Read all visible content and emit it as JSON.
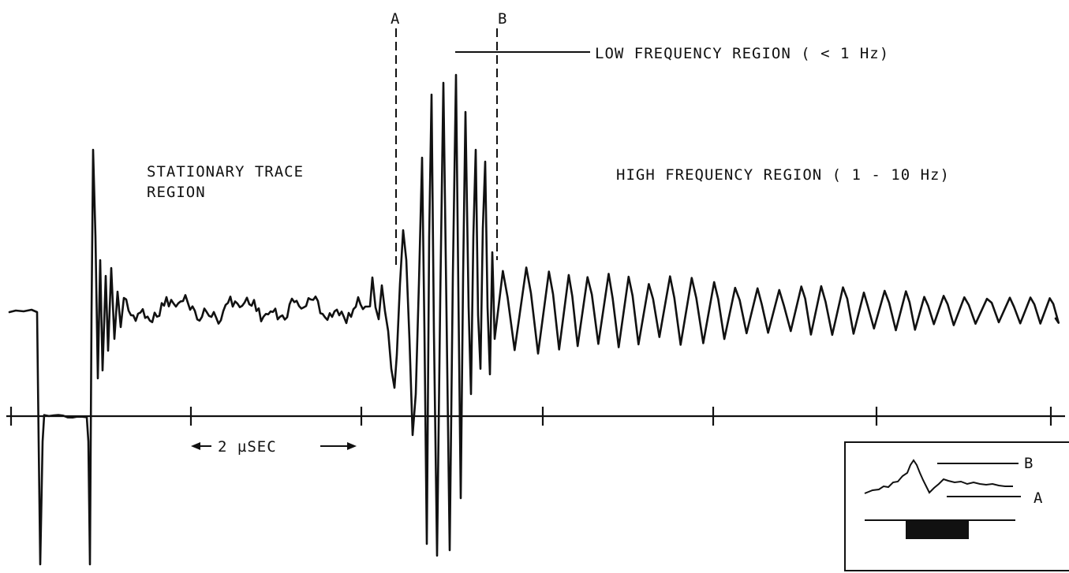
{
  "markers": {
    "a": "A",
    "b": "B"
  },
  "labels": {
    "low_frequency": "LOW FREQUENCY REGION  ( < 1 Hz)",
    "stationary_line1": "STATIONARY TRACE",
    "stationary_line2": "REGION",
    "high_frequency": "HIGH FREQUENCY REGION  ( 1 - 10 Hz)",
    "time_scale": "2 µSEC"
  },
  "inset": {
    "b": "B",
    "a": "A"
  },
  "colors": {
    "ink": "#111111",
    "background": "#ffffff"
  }
}
